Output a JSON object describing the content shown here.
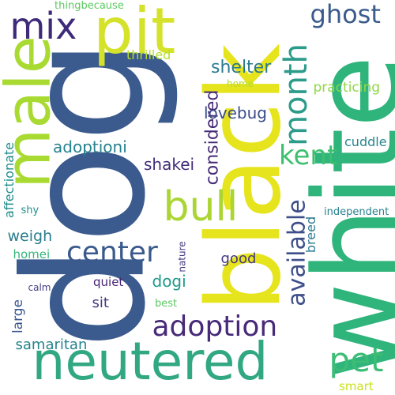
{
  "words": [
    {
      "text": "dog",
      "color": "#3b5b8e"
    },
    {
      "text": "white",
      "color": "#2fb47c"
    },
    {
      "text": "black",
      "color": "#e6e41c"
    },
    {
      "text": "neutered",
      "color": "#31a882"
    },
    {
      "text": "pit",
      "color": "#d4e22a"
    },
    {
      "text": "male",
      "color": "#a8da32"
    },
    {
      "text": "mix",
      "color": "#3d2a78"
    },
    {
      "text": "month",
      "color": "#2d9b8a"
    },
    {
      "text": "ghost",
      "color": "#3a5b8c"
    },
    {
      "text": "kent",
      "color": "#3cbf6f"
    },
    {
      "text": "bull",
      "color": "#aad533"
    },
    {
      "text": "center",
      "color": "#3a5a8c"
    },
    {
      "text": "adoption",
      "color": "#472a78"
    },
    {
      "text": "available",
      "color": "#3e4e8a"
    },
    {
      "text": "pet",
      "color": "#3cbc74"
    },
    {
      "text": "shelter",
      "color": "#2a7b8e"
    },
    {
      "text": "considered",
      "color": "#462a76"
    },
    {
      "text": "lovebug",
      "color": "#3a4c8a"
    },
    {
      "text": "adoptioni",
      "color": "#26818e"
    },
    {
      "text": "shakei",
      "color": "#432d7a"
    },
    {
      "text": "cuddle",
      "color": "#26858e"
    },
    {
      "text": "practicing",
      "color": "#8fd744"
    },
    {
      "text": "thrilled",
      "color": "#b6de2b"
    },
    {
      "text": "thingbecause",
      "color": "#5ec962"
    },
    {
      "text": "home",
      "color": "#b0dd2f"
    },
    {
      "text": "affectionate",
      "color": "#218e8d"
    },
    {
      "text": "weigh",
      "color": "#2a7c8e"
    },
    {
      "text": "homei",
      "color": "#35b779"
    },
    {
      "text": "shy",
      "color": "#21918c"
    },
    {
      "text": "good",
      "color": "#453781"
    },
    {
      "text": "dogi",
      "color": "#1f9a8a"
    },
    {
      "text": "breed",
      "color": "#2a788e"
    },
    {
      "text": "independent",
      "color": "#26828e"
    },
    {
      "text": "nature",
      "color": "#443a83"
    },
    {
      "text": "quiet",
      "color": "#482576"
    },
    {
      "text": "calm",
      "color": "#433e85"
    },
    {
      "text": "large",
      "color": "#39568c"
    },
    {
      "text": "sit",
      "color": "#453882"
    },
    {
      "text": "best",
      "color": "#5ec962"
    },
    {
      "text": "samaritan",
      "color": "#26828e"
    },
    {
      "text": "smart",
      "color": "#cde11d"
    }
  ]
}
